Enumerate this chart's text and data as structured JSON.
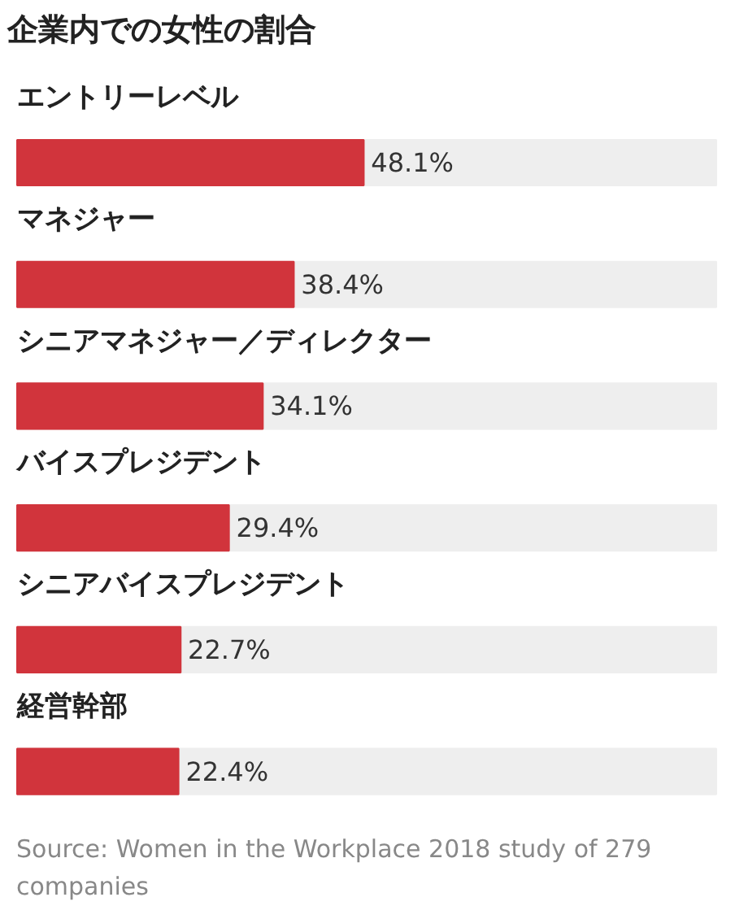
{
  "chart_data": {
    "type": "bar",
    "orientation": "horizontal",
    "title": "企業内での女性の割合",
    "categories": [
      "エントリーレベル",
      "マネジャー",
      "シニアマネジャー／ディレクター",
      "バイスプレジデント",
      "シニアバイスプレジデント",
      "経営幹部"
    ],
    "values": [
      48.1,
      38.4,
      34.1,
      29.4,
      22.7,
      22.4
    ],
    "value_labels": [
      "48.1%",
      "38.4%",
      "34.1%",
      "29.4%",
      "22.7%",
      "22.4%"
    ],
    "color": "#d1343c",
    "xlim": [
      0,
      97
    ],
    "grid": false,
    "tick_labels": false,
    "annotations": [
      "Source: Women in the Workplace 2018 study of 279 companies"
    ]
  }
}
